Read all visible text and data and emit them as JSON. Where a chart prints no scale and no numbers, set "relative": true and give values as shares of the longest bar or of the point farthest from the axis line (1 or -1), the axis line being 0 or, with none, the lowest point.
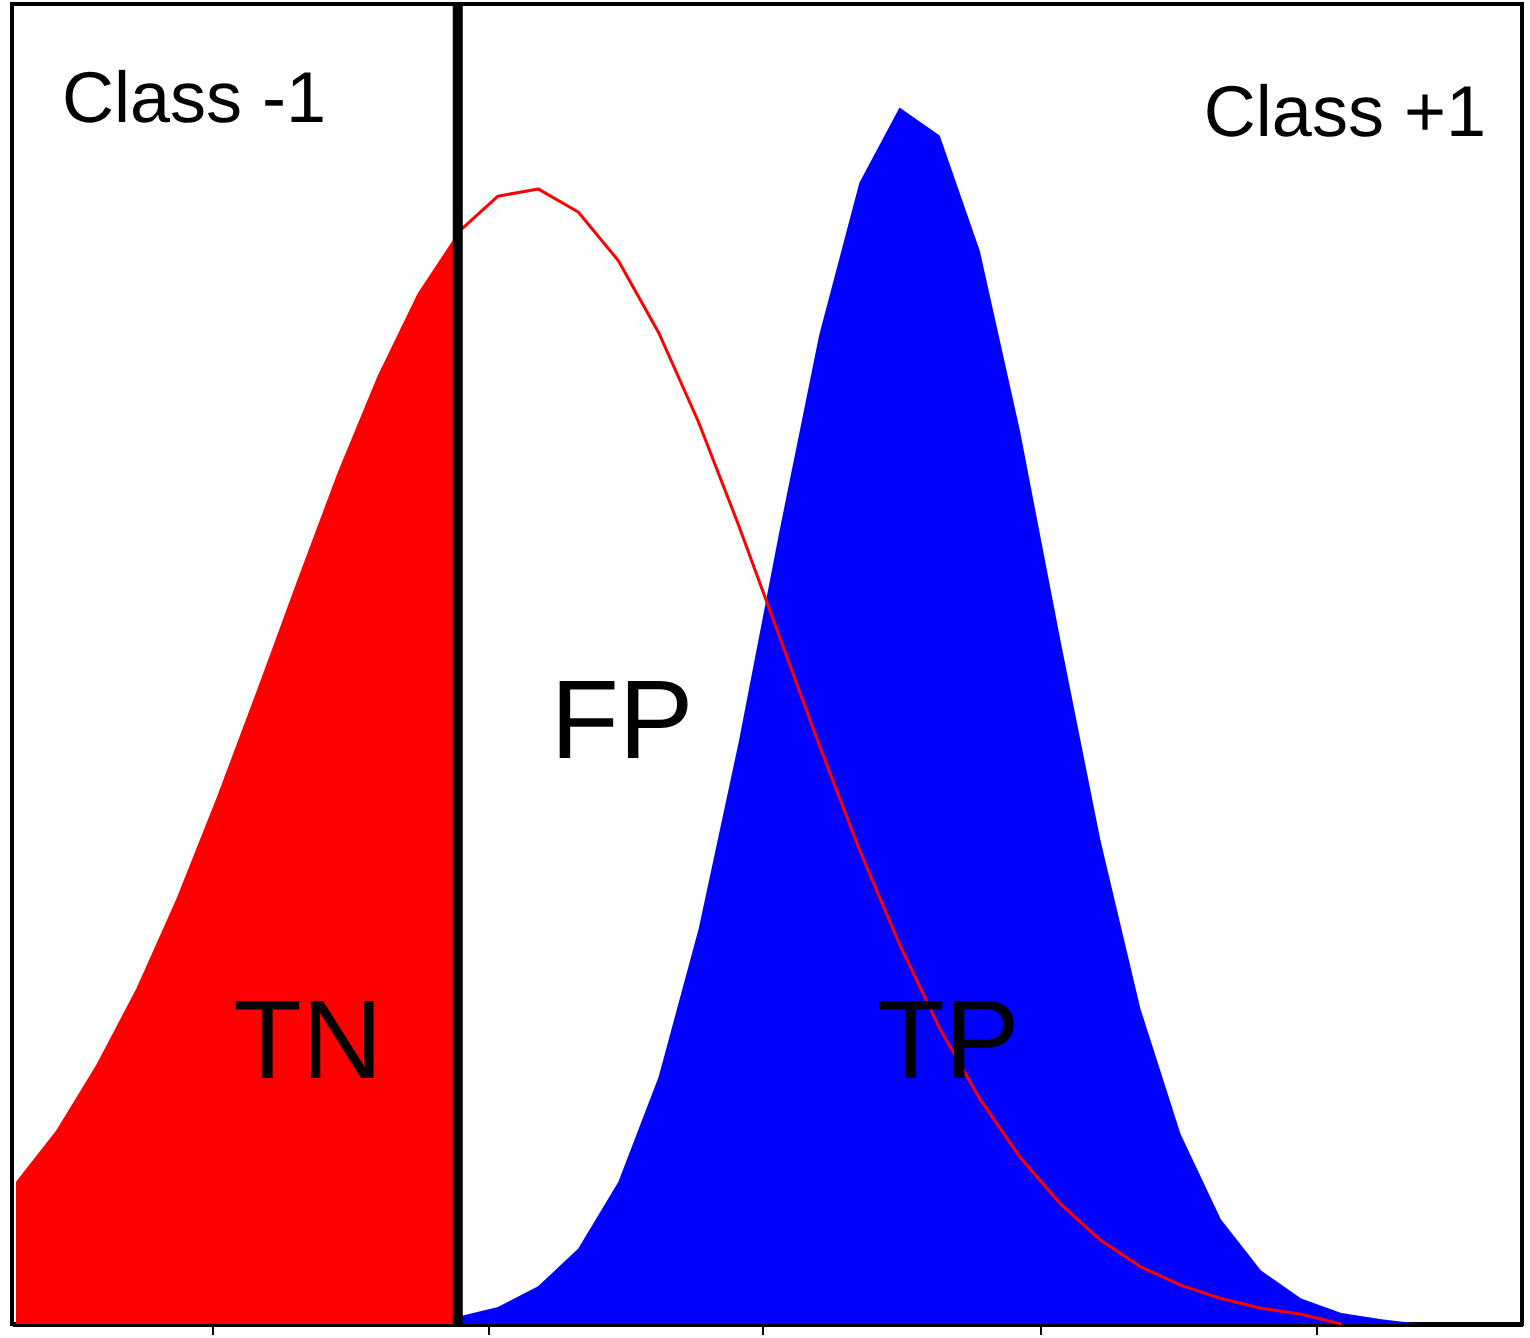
{
  "chart_data": {
    "type": "area",
    "relative": true,
    "categories": [
      null,
      null,
      null,
      null,
      null,
      null,
      null,
      null,
      null,
      null,
      null,
      null,
      null,
      null,
      null,
      null,
      null,
      null,
      null,
      null,
      null,
      null,
      null,
      null,
      null,
      null,
      null,
      null,
      null,
      null,
      null,
      null,
      null,
      null,
      null,
      null,
      null,
      null
    ],
    "series": [
      {
        "color": "#ff0000",
        "values": [
          0.117,
          0.159,
          0.213,
          0.276,
          0.35,
          0.433,
          0.521,
          0.611,
          0.699,
          0.779,
          0.847,
          0.897,
          null,
          null,
          null,
          null,
          null,
          null,
          null,
          null,
          null,
          null,
          null,
          null,
          null,
          null,
          null,
          null,
          null,
          null,
          null,
          null,
          null,
          null,
          null,
          null,
          null,
          null
        ]
      },
      {
        "color": "#0000ff",
        "values": [
          null,
          null,
          null,
          null,
          null,
          null,
          null,
          null,
          null,
          null,
          null,
          0.006,
          0.014,
          0.031,
          0.062,
          0.117,
          0.203,
          0.325,
          0.479,
          0.65,
          0.813,
          0.938,
          1.0,
          0.977,
          0.882,
          0.734,
          0.563,
          0.398,
          0.259,
          0.156,
          0.086,
          0.044,
          0.021,
          0.009,
          0.004,
          0.0,
          null,
          null
        ]
      },
      {
        "type": "line",
        "color": "#ff0000",
        "values": [
          null,
          null,
          null,
          null,
          null,
          null,
          null,
          null,
          null,
          null,
          null,
          0.897,
          0.927,
          0.933,
          0.914,
          0.874,
          0.815,
          0.741,
          0.656,
          0.566,
          0.476,
          0.39,
          0.312,
          0.243,
          0.185,
          0.137,
          0.099,
          0.069,
          0.047,
          0.032,
          0.021,
          0.013,
          0.008,
          0.0,
          null,
          null,
          null,
          null
        ]
      }
    ],
    "annotations": [
      "Class -1",
      "Class +1",
      "TN",
      "FP",
      "TP"
    ]
  }
}
